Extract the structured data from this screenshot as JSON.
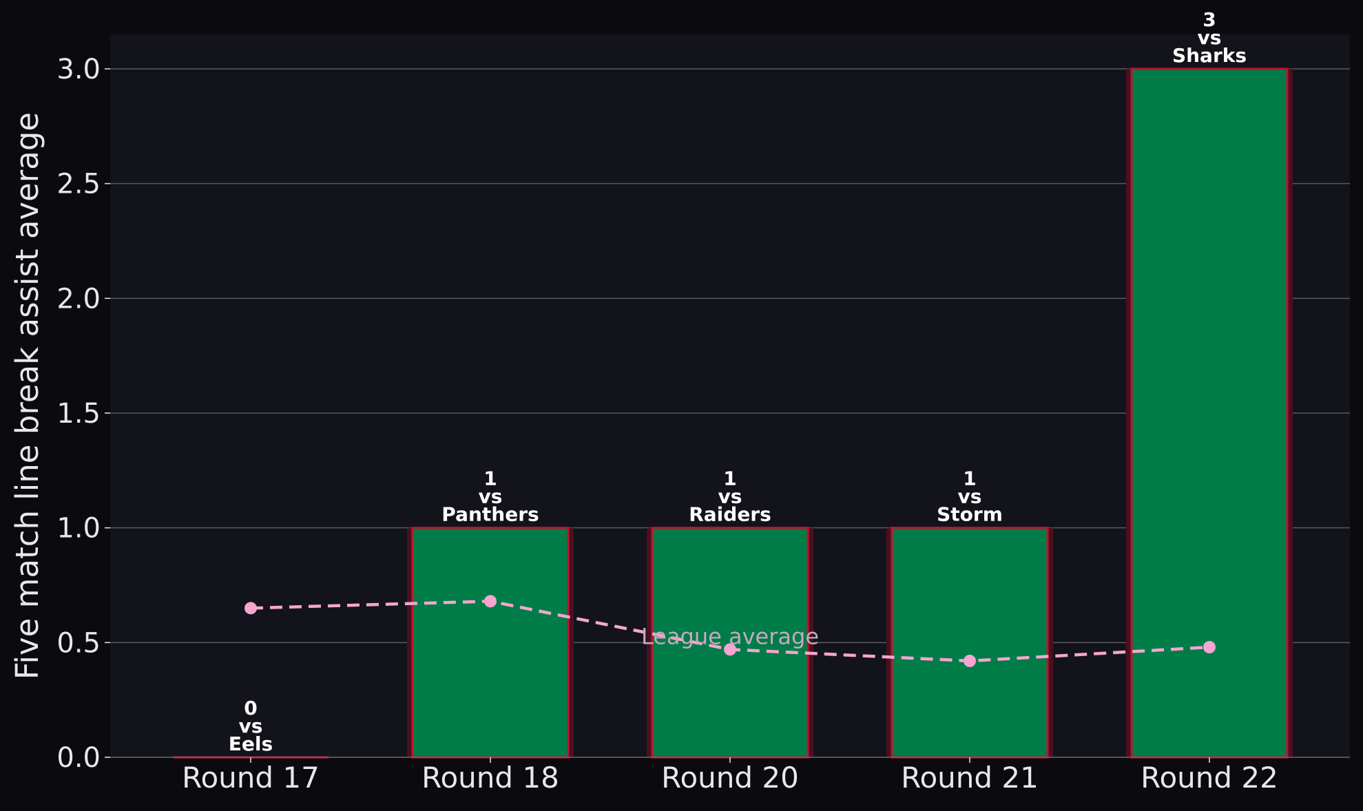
{
  "chart_data": {
    "type": "bar",
    "title": "",
    "xlabel": "",
    "ylabel": "Five match line break assist average",
    "ylim": [
      0,
      3.15
    ],
    "yticks": [
      0.0,
      0.5,
      1.0,
      1.5,
      2.0,
      2.5,
      3.0
    ],
    "ytick_labels": [
      "0.0",
      "0.5",
      "1.0",
      "1.5",
      "2.0",
      "2.5",
      "3.0"
    ],
    "categories": [
      "Round 17",
      "Round 18",
      "Round 20",
      "Round 21",
      "Round 22"
    ],
    "grid": "horizontal",
    "series": [
      {
        "kind": "bar",
        "values": [
          0,
          1,
          1,
          1,
          3
        ],
        "opponents": [
          "Eels",
          "Panthers",
          "Raiders",
          "Storm",
          "Sharks"
        ],
        "bar_labels": [
          [
            "0",
            "vs",
            "Eels"
          ],
          [
            "1",
            "vs",
            "Panthers"
          ],
          [
            "1",
            "vs",
            "Raiders"
          ],
          [
            "1",
            "vs",
            "Storm"
          ],
          [
            "3",
            "vs",
            "Sharks"
          ]
        ]
      },
      {
        "kind": "line",
        "style": "dashed",
        "values": [
          0.65,
          0.68,
          0.47,
          0.42,
          0.48
        ],
        "annotation": "League average"
      }
    ],
    "colors": {
      "page_background": "#0b0b0f",
      "plot_background": "#13131b",
      "bar_fill": "#007c48",
      "bar_edge": "#c0132f",
      "bar_glow": "#4a1020",
      "average_line": "#f4a6cf",
      "grid": "#5a5a62",
      "text": "#e8e8ec",
      "label_text": "#ffffff",
      "annotation_text": "#c7a8be"
    }
  }
}
